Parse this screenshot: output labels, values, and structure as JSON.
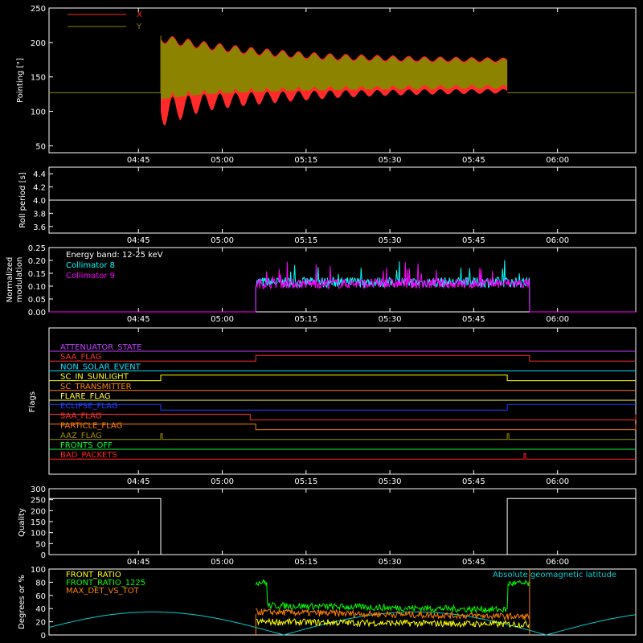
{
  "chart_data": [
    {
      "id": "pointing",
      "type": "area",
      "ylabel": "Pointing [\"]",
      "ylim": [
        40,
        250
      ],
      "yticks": [
        50,
        100,
        150,
        200,
        250
      ],
      "xticks": [
        "04:45",
        "05:00",
        "05:15",
        "05:30",
        "05:45",
        "06:00"
      ],
      "legend_position": "top-left",
      "baseline": 127,
      "envelope_start": "04:49",
      "envelope_end": "05:51",
      "series": [
        {
          "name": "X",
          "color": "#ff2a2a",
          "lower_min": [
            77,
            100,
            108,
            114,
            119,
            122,
            124,
            125,
            126
          ],
          "lower_max": [
            125,
            128,
            130,
            131,
            132,
            132,
            133,
            133,
            133
          ]
        },
        {
          "name": "Y",
          "color": "#8c8400",
          "lower": [
            118,
            125,
            128,
            130,
            131,
            132,
            132,
            133,
            133
          ],
          "upper": [
            210,
            200,
            192,
            186,
            182,
            180,
            178,
            177,
            176
          ]
        }
      ]
    },
    {
      "id": "roll",
      "type": "line",
      "ylabel": "Roll period [s]",
      "ylim": [
        3.5,
        4.5
      ],
      "yticks": [
        "3.6",
        "3.8",
        "4.0",
        "4.2",
        "4.4"
      ],
      "xticks": [
        "04:45",
        "05:00",
        "05:15",
        "05:30",
        "05:45",
        "06:00"
      ],
      "series": [
        {
          "name": "",
          "color": "#ffffff",
          "value": 4.0
        }
      ]
    },
    {
      "id": "modulation",
      "type": "line",
      "ylabel": "Normalized modulation",
      "ylim": [
        0,
        0.25
      ],
      "yticks": [
        "0.00",
        "0.05",
        "0.10",
        "0.15",
        "0.20",
        "0.25"
      ],
      "xticks": [
        "04:45",
        "05:00",
        "05:15",
        "05:30",
        "05:45",
        "06:00"
      ],
      "annotation": "Energy band: 12-25 keV",
      "active_start": "05:06",
      "active_end": "05:55",
      "series": [
        {
          "name": "Collimator 8",
          "color": "#00ffff",
          "mean": 0.115
        },
        {
          "name": "Collimator 9",
          "color": "#ff00ff",
          "mean": 0.11
        }
      ]
    },
    {
      "id": "flags",
      "type": "line",
      "ylabel": "Flags",
      "xticks": [
        "04:45",
        "05:00",
        "05:15",
        "05:30",
        "05:45",
        "06:00"
      ],
      "series": [
        {
          "name": "ATTENUATOR_STATE",
          "color": "#c040ff",
          "steps": []
        },
        {
          "name": "SAA_FLAG",
          "color": "#ff3030",
          "steps": [
            [
              "05:06",
              "05:55"
            ]
          ]
        },
        {
          "name": "NON_SOLAR_EVENT",
          "color": "#00e0ff",
          "steps": []
        },
        {
          "name": "SC_IN_SUNLIGHT",
          "color": "#ffff00",
          "steps": [
            [
              "04:49",
              "05:51"
            ]
          ]
        },
        {
          "name": "SC_TRANSMITTER",
          "color": "#ff8000",
          "steps": []
        },
        {
          "name": "FLARE_FLAG",
          "color": "#ffff40",
          "steps": []
        },
        {
          "name": "ECLIPSE_FLAG",
          "color": "#2040ff",
          "steps": [
            [
              "04:49",
              "05:51"
            ]
          ],
          "inverted": true
        },
        {
          "name": "SAA_FLAG",
          "color": "#ff3030",
          "steps": [
            [
              "05:05",
              "06:30"
            ]
          ],
          "inverted": true
        },
        {
          "name": "PARTICLE_FLAG",
          "color": "#ff8000",
          "steps": [
            [
              "05:06",
              "06:30"
            ]
          ],
          "inverted": true
        },
        {
          "name": "AAZ_FLAG",
          "color": "#a09000",
          "spikes": [
            "04:49",
            "05:51"
          ]
        },
        {
          "name": "FRONTS_OFF",
          "color": "#00ff40",
          "steps": []
        },
        {
          "name": "BAD_PACKETS",
          "color": "#ff2020",
          "spikes": [
            "05:54"
          ]
        }
      ]
    },
    {
      "id": "quality",
      "type": "line",
      "ylabel": "Quality",
      "ylim": [
        0,
        300
      ],
      "yticks": [
        "0",
        "50",
        "100",
        "150",
        "200",
        "250",
        "300"
      ],
      "xticks": [
        "04:45",
        "05:00",
        "05:15",
        "05:30",
        "05:45",
        "06:00"
      ],
      "series": [
        {
          "name": "",
          "color": "#ffffff",
          "points": [
            [
              "04:29",
              255
            ],
            [
              "04:49",
              255
            ],
            [
              "04:49",
              0
            ],
            [
              "05:51",
              0
            ],
            [
              "05:51",
              255
            ],
            [
              "06:14",
              255
            ]
          ]
        }
      ]
    },
    {
      "id": "ratios",
      "type": "line",
      "ylabel": "Degrees or %",
      "ylim": [
        0,
        100
      ],
      "yticks": [
        "0",
        "20",
        "40",
        "60",
        "80",
        "100"
      ],
      "series": [
        {
          "name": "FRONT_RATIO",
          "color": "#ffff00",
          "mean": 20
        },
        {
          "name": "FRONT_RATIO_1225",
          "color": "#00ff00",
          "mean": 45
        },
        {
          "name": "MAX_DET_VS_TOT",
          "color": "#ff8000",
          "mean": 35
        },
        {
          "name": "Absolute geomagnetic latitude",
          "color": "#00d0d0"
        }
      ]
    }
  ],
  "colors": {
    "background": "#000000",
    "axes": "#ffffff"
  }
}
